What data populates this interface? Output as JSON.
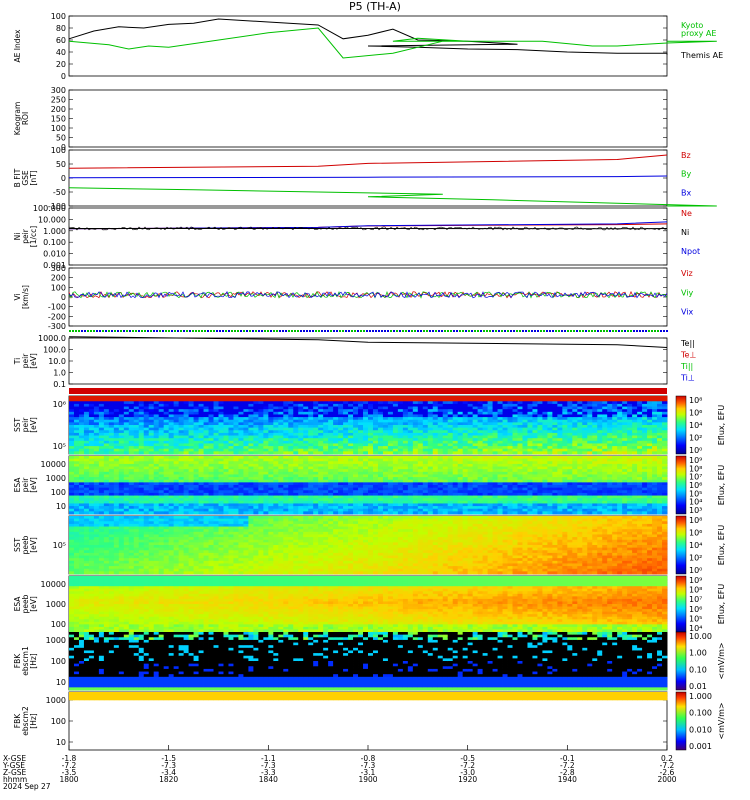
{
  "title": "P5 (TH-A)",
  "colors": {
    "black": "#000000",
    "red": "#d00000",
    "green": "#00c000",
    "blue": "#0000e0"
  },
  "chart_data": [
    {
      "id": "ae",
      "type": "line",
      "ylabel": [
        "AE Index"
      ],
      "ylim": [
        0,
        100
      ],
      "yticks": [
        "100",
        "80",
        "60",
        "40",
        "20",
        "0"
      ],
      "legend": [
        {
          "name": "Kyoto",
          "color": "green"
        },
        {
          "name": "proxy AE",
          "color": "green"
        },
        {
          "name": "Themis AE",
          "color": "black"
        }
      ],
      "series": [
        {
          "name": "Themis AE",
          "color": "black",
          "x": [
            1800,
            1805,
            1810,
            1815,
            1820,
            1825,
            1830,
            1840,
            1850,
            1855,
            1860,
            1865,
            1870,
            1880,
            1890,
            1900,
            1910,
            1920,
            1930,
            1940,
            1950,
            1960,
            2000
          ],
          "values": [
            62,
            75,
            82,
            80,
            86,
            88,
            95,
            90,
            85,
            62,
            68,
            78,
            60,
            58,
            53,
            50,
            48,
            45,
            44,
            40,
            38,
            38,
            35
          ]
        },
        {
          "name": "Kyoto proxy AE",
          "color": "green",
          "x": [
            1800,
            1808,
            1812,
            1816,
            1820,
            1840,
            1850,
            1855,
            1865,
            1875,
            1890,
            1905,
            1910,
            1920,
            1925,
            1935,
            1945,
            1950,
            1960,
            1970,
            2000
          ],
          "values": [
            58,
            52,
            45,
            50,
            48,
            72,
            80,
            30,
            38,
            58,
            58,
            58,
            63,
            58,
            58,
            58,
            50,
            50,
            55,
            58,
            58
          ]
        }
      ]
    },
    {
      "id": "keogram",
      "type": "line",
      "ylabel": [
        "Keogram",
        "ROI"
      ],
      "yticks": [
        "300",
        "250",
        "200",
        "150",
        "100",
        "50",
        "0"
      ]
    },
    {
      "id": "bfield",
      "type": "line",
      "ylabel": [
        "B FIT",
        "GSE",
        "[nT]"
      ],
      "ylim": [
        -100,
        100
      ],
      "yticks": [
        "100",
        "50",
        "0",
        "-50",
        "-100"
      ],
      "legend": [
        {
          "name": "Bz",
          "color": "red"
        },
        {
          "name": "By",
          "color": "green"
        },
        {
          "name": "Bx",
          "color": "blue"
        }
      ],
      "series": [
        {
          "name": "Bz",
          "color": "red",
          "x": [
            1800,
            1850,
            1900,
            1950,
            2000
          ],
          "values": [
            35,
            42,
            52,
            66,
            82
          ]
        },
        {
          "name": "By",
          "color": "green",
          "x": [
            1800,
            1825,
            1850,
            1875,
            1900,
            1925,
            1950,
            1970,
            2000
          ],
          "values": [
            -35,
            -42,
            -50,
            -58,
            -67,
            -78,
            -90,
            -100,
            -100
          ]
        },
        {
          "name": "Bx",
          "color": "blue",
          "x": [
            1800,
            1850,
            1900,
            1950,
            2000
          ],
          "values": [
            1,
            2,
            3,
            5,
            7
          ]
        }
      ]
    },
    {
      "id": "density",
      "type": "line",
      "ylabel": [
        "Ni",
        "peir",
        "[1/cc]"
      ],
      "ylog": true,
      "ylim": [
        0.001,
        100
      ],
      "yticks": [
        "100.000",
        "10.000",
        "1.000",
        "0.100",
        "0.010",
        "0.001"
      ],
      "legend": [
        {
          "name": "Ne",
          "color": "red"
        },
        {
          "name": "Ni",
          "color": "black"
        },
        {
          "name": "Npot",
          "color": "blue"
        }
      ],
      "series": [
        {
          "name": "Ne",
          "color": "red",
          "x": [
            1800,
            1850,
            1900,
            1950,
            2000
          ],
          "values": [
            1.5,
            2.0,
            2.7,
            3.5,
            4.0
          ]
        },
        {
          "name": "Npot",
          "color": "blue",
          "x": [
            1800,
            1850,
            1900,
            1950,
            2000
          ],
          "values": [
            1.5,
            2.0,
            2.8,
            4.0,
            6.0
          ]
        },
        {
          "name": "Ni",
          "color": "black",
          "x": [
            1800,
            1850,
            1900,
            1950,
            2000
          ],
          "values": [
            1.6,
            1.6,
            1.6,
            1.5,
            1.6
          ]
        }
      ]
    },
    {
      "id": "velocity",
      "type": "scatter",
      "ylabel": [
        "Vi",
        "[km/s]"
      ],
      "ylim": [
        -350,
        300
      ],
      "yticks": [
        "300",
        "200",
        "100",
        "0",
        "-100",
        "-200",
        "-300"
      ],
      "legend": [
        {
          "name": "Viz",
          "color": "red"
        },
        {
          "name": "Viy",
          "color": "green"
        },
        {
          "name": "Vix",
          "color": "blue"
        }
      ]
    },
    {
      "id": "temperature",
      "type": "line",
      "ylabel": [
        "Ti",
        "peir",
        "[eV]"
      ],
      "ylog": true,
      "ylim": [
        0.1,
        1000
      ],
      "yticks": [
        "1000.0",
        "100.0",
        "10.0",
        "1.0",
        "0.1"
      ],
      "legend": [
        {
          "name": "Te||",
          "color": "black"
        },
        {
          "name": "Te⊥",
          "color": "red"
        },
        {
          "name": "Ti||",
          "color": "green"
        },
        {
          "name": "Ti⊥",
          "color": "blue"
        }
      ],
      "series": [
        {
          "name": "Ti",
          "color": "black",
          "x": [
            1800,
            1850,
            1900,
            1950,
            2000
          ],
          "values": [
            1300,
            700,
            420,
            260,
            150
          ]
        }
      ]
    },
    {
      "id": "sst_ion",
      "type": "heatmap",
      "ylabel": [
        "SST",
        "peir",
        "[eV]"
      ],
      "yticks": [
        "10⁶",
        "10⁵"
      ],
      "colorbar_label": "Eflux, EFU",
      "colorbar_ticks": [
        "10⁸",
        "10⁶",
        "10⁴",
        "10²",
        "10⁰"
      ]
    },
    {
      "id": "esa_ion",
      "type": "heatmap",
      "ylabel": [
        "ESA",
        "peir",
        "[eV]"
      ],
      "yticks": [
        "10000",
        "1000",
        "100",
        "10"
      ],
      "colorbar_label": "Eflux, EFU",
      "colorbar_ticks": [
        "10⁹",
        "10⁸",
        "10⁷",
        "10⁶",
        "10⁵",
        "10⁴",
        "10³"
      ]
    },
    {
      "id": "sst_elec",
      "type": "heatmap",
      "ylabel": [
        "SST",
        "peeb",
        "[eV]"
      ],
      "yticks": [
        "10⁵"
      ],
      "colorbar_label": "Eflux, EFU",
      "colorbar_ticks": [
        "10⁸",
        "10⁶",
        "10⁴",
        "10²",
        "10⁰"
      ]
    },
    {
      "id": "esa_elec",
      "type": "heatmap",
      "ylabel": [
        "ESA",
        "peeb",
        "[eV]"
      ],
      "yticks": [
        "10000",
        "1000",
        "100"
      ],
      "colorbar_label": "Eflux, EFU",
      "colorbar_ticks": [
        "10⁹",
        "10⁸",
        "10⁷",
        "10⁶",
        "10⁵",
        "10⁴"
      ]
    },
    {
      "id": "fbk1",
      "type": "heatmap",
      "ylabel": [
        "FBK",
        "ebscm1",
        "[Hz]"
      ],
      "yticks": [
        "1000",
        "100",
        "10"
      ],
      "colorbar_label": "<mV/m>",
      "colorbar_ticks": [
        "10.00",
        "1.00",
        "0.10",
        "0.01"
      ]
    },
    {
      "id": "fbk2",
      "type": "heatmap",
      "ylabel": [
        "FBK",
        "ebscm2",
        "[Hz]"
      ],
      "yticks": [
        "1000",
        "100",
        "10"
      ],
      "colorbar_label": "<mV/m>",
      "colorbar_ticks": [
        "1.000",
        "0.100",
        "0.010",
        "0.001"
      ]
    }
  ],
  "xaxis": {
    "x_ticks": [
      1800,
      1820,
      1840,
      1900,
      1920,
      1940,
      2000
    ],
    "row_labels": [
      "X-GSE",
      "Y-GSE",
      "Z-GSE",
      "hhmm",
      "2024 Sep 27"
    ],
    "rows": [
      [
        "-1.8",
        "-1.5",
        "-1.1",
        "-0.8",
        "-0.5",
        "-0.1",
        "0.2"
      ],
      [
        "-7.2",
        "-7.3",
        "-7.3",
        "-7.3",
        "-7.2",
        "-7.2",
        "-7.2"
      ],
      [
        "-3.5",
        "-3.4",
        "-3.3",
        "-3.1",
        "-3.0",
        "-2.8",
        "-2.6"
      ],
      [
        "1800",
        "1820",
        "1840",
        "1900",
        "1920",
        "1940",
        "2000"
      ]
    ]
  }
}
